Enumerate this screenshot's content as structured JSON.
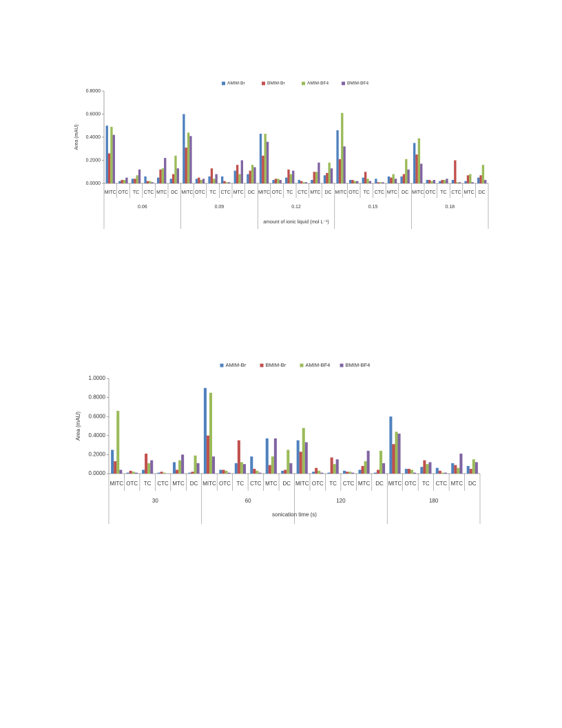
{
  "chart_data": [
    {
      "type": "bar",
      "y_label": "Area (mAU)",
      "x_label": "amount of ionic liquid (mol L⁻¹)",
      "categories": [
        "MITC",
        "OTC",
        "TC",
        "CTC",
        "MTC",
        "DC",
        "MITC",
        "OTC",
        "TC",
        "CTC",
        "MTC",
        "DC",
        "MITC",
        "OTC",
        "TC",
        "CTC",
        "MTC",
        "DC",
        "MITC",
        "OTC",
        "TC",
        "CTC",
        "MTC",
        "DC",
        "MITC",
        "OTC",
        "TC",
        "CTC",
        "MTC",
        "DC"
      ],
      "groups": [
        "0.06",
        "0.09",
        "0.12",
        "0.15",
        "0.18"
      ],
      "ylim": [
        0,
        0.8
      ],
      "yticks": [
        {
          "value": 0,
          "label": "0.0000"
        },
        {
          "value": 0.2,
          "label": "0.2000"
        },
        {
          "value": 0.4,
          "label": "0.4000"
        },
        {
          "value": 0.6,
          "label": "0.6000"
        },
        {
          "value": 0.8,
          "label": "0.8000"
        }
      ],
      "series": [
        {
          "name": "AMIM-Br",
          "color": "#4f81bd",
          "values": [
            0.5,
            0.02,
            0.04,
            0.06,
            0.05,
            0.04,
            0.6,
            0.04,
            0.06,
            0.06,
            0.11,
            0.08,
            0.43,
            0.03,
            0.05,
            0.03,
            0.03,
            0.07,
            0.46,
            0.03,
            0.05,
            0.04,
            0.06,
            0.06,
            0.35,
            0.03,
            0.02,
            0.03,
            0.02,
            0.05
          ]
        },
        {
          "name": "BMIM-Br",
          "color": "#c0504d",
          "values": [
            0.26,
            0.03,
            0.04,
            0.02,
            0.12,
            0.08,
            0.31,
            0.05,
            0.13,
            0.02,
            0.16,
            0.11,
            0.24,
            0.04,
            0.12,
            0.02,
            0.1,
            0.09,
            0.21,
            0.03,
            0.1,
            0.01,
            0.05,
            0.08,
            0.25,
            0.03,
            0.03,
            0.2,
            0.07,
            0.07
          ]
        },
        {
          "name": "AMIM-BF4",
          "color": "#9bbb59",
          "values": [
            0.49,
            0.03,
            0.07,
            0.02,
            0.13,
            0.24,
            0.44,
            0.03,
            0.04,
            0.01,
            0.08,
            0.16,
            0.43,
            0.04,
            0.08,
            0.01,
            0.1,
            0.18,
            0.61,
            0.02,
            0.04,
            0.01,
            0.08,
            0.21,
            0.39,
            0.02,
            0.03,
            0.01,
            0.08,
            0.16
          ]
        },
        {
          "name": "BMIM-BF4",
          "color": "#8064a2",
          "values": [
            0.42,
            0.05,
            0.12,
            0.01,
            0.22,
            0.13,
            0.41,
            0.04,
            0.08,
            0.01,
            0.2,
            0.14,
            0.36,
            0.03,
            0.11,
            0.01,
            0.18,
            0.13,
            0.32,
            0.02,
            0.02,
            0.01,
            0.04,
            0.12,
            0.17,
            0.03,
            0.04,
            0.01,
            0.01,
            0.03
          ]
        }
      ]
    },
    {
      "type": "bar",
      "y_label": "Area (mAU)",
      "x_label": "sonication time (s)",
      "categories": [
        "MITC",
        "OTC",
        "TC",
        "CTC",
        "MTC",
        "DC",
        "MITC",
        "OTC",
        "TC",
        "CTC",
        "MTC",
        "DC",
        "MITC",
        "OTC",
        "TC",
        "CTC",
        "MTC",
        "DC",
        "MITC",
        "OTC",
        "TC",
        "CTC",
        "MTC",
        "DC"
      ],
      "groups": [
        "30",
        "60",
        "120",
        "180"
      ],
      "ylim": [
        0,
        1.0
      ],
      "yticks": [
        {
          "value": 0,
          "label": "0.0000"
        },
        {
          "value": 0.2,
          "label": "0.2000"
        },
        {
          "value": 0.4,
          "label": "0.4000"
        },
        {
          "value": 0.6,
          "label": "0.6000"
        },
        {
          "value": 0.8,
          "label": "0.8000"
        },
        {
          "value": 1.0,
          "label": "1.0000"
        }
      ],
      "series": [
        {
          "name": "AMIM-Br",
          "color": "#4f81bd",
          "values": [
            0.25,
            0.01,
            0.04,
            0.01,
            0.12,
            0.01,
            0.9,
            0.04,
            0.11,
            0.18,
            0.37,
            0.03,
            0.35,
            0.02,
            0.01,
            0.03,
            0.04,
            0.01,
            0.6,
            0.05,
            0.07,
            0.06,
            0.11,
            0.08
          ]
        },
        {
          "name": "BMIM-Br",
          "color": "#c0504d",
          "values": [
            0.13,
            0.03,
            0.21,
            0.02,
            0.04,
            0.02,
            0.4,
            0.04,
            0.35,
            0.05,
            0.09,
            0.04,
            0.23,
            0.06,
            0.17,
            0.02,
            0.08,
            0.04,
            0.31,
            0.05,
            0.14,
            0.03,
            0.09,
            0.05
          ]
        },
        {
          "name": "AMIM-BF4",
          "color": "#9bbb59",
          "values": [
            0.66,
            0.02,
            0.11,
            0.01,
            0.14,
            0.19,
            0.85,
            0.03,
            0.12,
            0.03,
            0.18,
            0.25,
            0.48,
            0.03,
            0.1,
            0.02,
            0.13,
            0.24,
            0.44,
            0.04,
            0.1,
            0.01,
            0.06,
            0.15
          ]
        },
        {
          "name": "BMIM-BF4",
          "color": "#8064a2",
          "values": [
            0.04,
            0.01,
            0.14,
            0.0,
            0.2,
            0.11,
            0.18,
            0.01,
            0.1,
            0.01,
            0.37,
            0.11,
            0.33,
            0.01,
            0.15,
            0.01,
            0.24,
            0.11,
            0.42,
            0.01,
            0.12,
            0.01,
            0.21,
            0.12
          ]
        }
      ]
    }
  ]
}
